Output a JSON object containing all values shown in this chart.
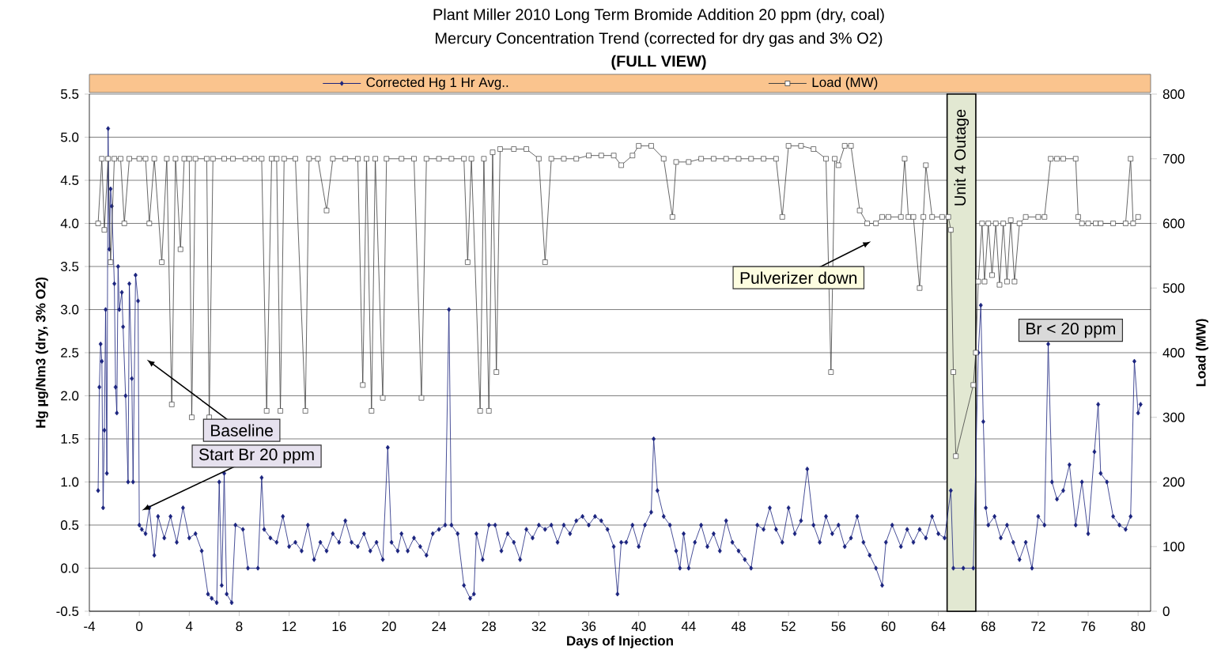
{
  "chart_data": {
    "type": "line",
    "title": "Plant Miller 2010 Long Term Bromide Addition 20 ppm (dry, coal)",
    "subtitle": "Mercury Concentration Trend (corrected for dry gas and 3% O2)",
    "xlabel": "Days of Injection",
    "ylabel": "Hg µg/Nm3 (dry, 3% O2)",
    "y2label": "Load (MW)",
    "annotations": [
      "(FULL VIEW)",
      "Baseline",
      "Start Br 20 ppm",
      "Pulverizer  down",
      "Br < 20 ppm"
    ],
    "series": [
      {
        "name": "Corrected Hg 1 Hr Avg..",
        "color": "#1a237e",
        "marker": "diamond",
        "x": [
          -3.3,
          -3.2,
          -3.1,
          -3.0,
          -2.9,
          -2.8,
          -2.7,
          -2.6,
          -2.5,
          -2.4,
          -2.3,
          -2.2,
          -2.0,
          -1.9,
          -1.8,
          -1.7,
          -1.6,
          -1.4,
          -1.3,
          -1.1,
          -0.9,
          -0.8,
          -0.6,
          -0.5,
          -0.3,
          -0.1,
          0.0,
          0.2,
          0.5,
          0.8,
          1.2,
          1.5,
          2,
          2.5,
          3,
          3.5,
          4,
          4.5,
          5,
          5.5,
          5.8,
          6.2,
          6.4,
          6.6,
          6.8,
          7.0,
          7.4,
          7.7,
          8.3,
          8.7,
          9.5,
          9.8,
          10,
          10.5,
          11,
          11.5,
          12,
          12.5,
          13,
          13.5,
          14,
          14.5,
          15,
          15.5,
          16,
          16.5,
          17,
          17.5,
          18,
          18.5,
          19,
          19.5,
          19.9,
          20.2,
          20.7,
          21,
          21.5,
          22,
          22.5,
          23,
          23.5,
          24,
          24.5,
          24.8,
          25,
          25.5,
          26,
          26.5,
          26.8,
          27,
          27.5,
          28,
          28.5,
          29,
          29.5,
          30,
          30.5,
          31,
          31.5,
          32,
          32.5,
          33,
          33.5,
          34,
          34.5,
          35,
          35.5,
          36,
          36.5,
          37,
          37.5,
          38,
          38.3,
          38.6,
          39,
          39.5,
          40,
          40.5,
          41,
          41.2,
          41.5,
          42,
          42.5,
          43,
          43.3,
          43.6,
          44,
          44.5,
          45,
          45.5,
          46,
          46.5,
          47,
          47.5,
          48,
          48.5,
          49,
          49.5,
          50,
          50.5,
          51,
          51.5,
          52,
          52.5,
          53,
          53.5,
          54,
          54.5,
          55,
          55.5,
          56,
          56.5,
          57,
          57.5,
          58,
          58.5,
          59,
          59.5,
          59.8,
          60.3,
          61,
          61.5,
          62,
          62.5,
          63,
          63.5,
          64,
          64.5,
          65,
          65.2,
          66,
          66.8,
          67.2,
          67.4,
          67.6,
          67.8,
          68,
          68.5,
          69,
          69.5,
          70,
          70.5,
          71,
          71.5,
          72,
          72.5,
          72.8,
          73.1,
          73.5,
          74,
          74.5,
          75,
          75.5,
          76,
          76.5,
          76.8,
          77,
          77.5,
          78,
          78.5,
          79,
          79.4,
          79.7,
          80,
          80.2
        ],
        "values": [
          0.9,
          2.1,
          2.6,
          2.4,
          0.7,
          1.6,
          3.0,
          1.1,
          5.1,
          3.7,
          4.4,
          4.2,
          3.3,
          2.1,
          1.8,
          3.5,
          3.0,
          3.2,
          2.8,
          2.0,
          1.0,
          3.3,
          2.2,
          1.0,
          3.4,
          3.1,
          0.5,
          0.45,
          0.4,
          0.7,
          0.15,
          0.6,
          0.35,
          0.6,
          0.3,
          0.7,
          0.35,
          0.4,
          0.2,
          -0.3,
          -0.35,
          -0.4,
          1.0,
          -0.2,
          1.1,
          -0.3,
          -0.4,
          0.5,
          0.45,
          0.0,
          0.0,
          1.05,
          0.45,
          0.35,
          0.3,
          0.6,
          0.25,
          0.3,
          0.2,
          0.5,
          0.1,
          0.3,
          0.2,
          0.4,
          0.3,
          0.55,
          0.3,
          0.25,
          0.4,
          0.2,
          0.3,
          0.1,
          1.4,
          0.3,
          0.2,
          0.4,
          0.2,
          0.35,
          0.25,
          0.15,
          0.4,
          0.45,
          0.5,
          3.0,
          0.5,
          0.4,
          -0.2,
          -0.35,
          -0.3,
          0.4,
          0.1,
          0.5,
          0.5,
          0.2,
          0.4,
          0.3,
          0.1,
          0.45,
          0.35,
          0.5,
          0.45,
          0.5,
          0.3,
          0.5,
          0.4,
          0.55,
          0.6,
          0.5,
          0.6,
          0.55,
          0.45,
          0.25,
          -0.3,
          0.3,
          0.3,
          0.5,
          0.25,
          0.5,
          0.65,
          1.5,
          0.9,
          0.6,
          0.5,
          0.2,
          0.0,
          0.4,
          0.0,
          0.3,
          0.5,
          0.25,
          0.4,
          0.2,
          0.55,
          0.3,
          0.2,
          0.1,
          0.0,
          0.5,
          0.45,
          0.7,
          0.45,
          0.3,
          0.7,
          0.4,
          0.55,
          1.15,
          0.5,
          0.3,
          0.6,
          0.4,
          0.5,
          0.25,
          0.35,
          0.6,
          0.3,
          0.15,
          0.0,
          -0.2,
          0.3,
          0.5,
          0.25,
          0.45,
          0.3,
          0.45,
          0.35,
          0.6,
          0.4,
          0.35,
          0.9,
          0.0,
          0.0,
          0.0,
          2.5,
          3.05,
          1.7,
          0.7,
          0.5,
          0.6,
          0.35,
          0.5,
          0.3,
          0.1,
          0.3,
          0.0,
          0.6,
          0.5,
          2.6,
          1.0,
          0.8,
          0.9,
          1.2,
          0.5,
          1.0,
          0.4,
          1.35,
          1.9,
          1.1,
          1.0,
          0.6,
          0.5,
          0.45,
          0.6,
          2.4,
          1.8,
          1.9
        ]
      },
      {
        "name": "Load (MW)",
        "color": "#404040",
        "marker": "square",
        "axis": "y2",
        "x": [
          -3.3,
          -3.0,
          -2.8,
          -2.5,
          -2.3,
          -2.0,
          -1.5,
          -1.2,
          -0.8,
          0,
          0.5,
          0.8,
          1.2,
          1.8,
          2.2,
          2.6,
          2.9,
          3.3,
          3.6,
          4.0,
          4.2,
          4.5,
          5.4,
          5.6,
          5.9,
          6.8,
          7.5,
          8.5,
          9.2,
          9.8,
          10.2,
          10.6,
          11.0,
          11.3,
          11.6,
          12.5,
          13.3,
          13.6,
          14.3,
          15.0,
          15.5,
          16.5,
          17.5,
          17.9,
          18.2,
          18.6,
          18.9,
          19.5,
          19.8,
          21.0,
          22.0,
          22.6,
          23,
          24,
          25,
          26,
          26.3,
          26.6,
          27.3,
          27.6,
          28,
          28.3,
          28.6,
          28.9,
          30,
          31,
          32,
          32.5,
          33,
          34,
          35,
          36,
          37,
          38,
          38.6,
          39.5,
          40,
          41,
          42,
          42.7,
          43,
          44,
          45,
          46,
          47,
          48,
          49,
          50,
          51,
          51.5,
          52,
          53,
          54,
          55,
          55.4,
          55.7,
          56,
          56.5,
          57,
          57.7,
          58.3,
          59,
          59.5,
          60,
          61,
          61.3,
          61.6,
          62,
          62.5,
          62.8,
          63,
          63.5,
          64.3,
          64.8,
          65.0,
          65.2,
          65.4,
          66.8,
          67.0,
          67.2,
          67.5,
          67.7,
          68,
          68.3,
          68.6,
          68.9,
          69.2,
          69.5,
          69.8,
          70.1,
          70.5,
          71,
          72,
          72.5,
          73,
          73.5,
          74,
          75,
          75.2,
          75.5,
          76,
          76.6,
          77,
          78,
          79,
          79.4,
          79.6,
          80
        ],
        "values": [
          600,
          700,
          590,
          700,
          540,
          700,
          700,
          600,
          700,
          700,
          700,
          600,
          700,
          540,
          700,
          320,
          700,
          560,
          700,
          700,
          300,
          700,
          700,
          300,
          700,
          700,
          700,
          700,
          700,
          700,
          310,
          700,
          700,
          310,
          700,
          700,
          310,
          700,
          700,
          620,
          700,
          700,
          700,
          350,
          700,
          310,
          700,
          330,
          700,
          700,
          700,
          330,
          700,
          700,
          700,
          700,
          540,
          700,
          310,
          700,
          310,
          710,
          370,
          715,
          715,
          715,
          700,
          540,
          700,
          700,
          700,
          705,
          705,
          705,
          690,
          705,
          720,
          720,
          700,
          610,
          695,
          695,
          700,
          700,
          700,
          700,
          700,
          700,
          700,
          610,
          720,
          720,
          715,
          700,
          370,
          700,
          690,
          720,
          720,
          620,
          600,
          600,
          610,
          610,
          610,
          700,
          610,
          610,
          500,
          610,
          690,
          610,
          610,
          610,
          590,
          370,
          240,
          350,
          400,
          510,
          600,
          510,
          600,
          520,
          600,
          505,
          600,
          510,
          605,
          510,
          600,
          610,
          610,
          610,
          700,
          700,
          700,
          700,
          610,
          600,
          600,
          600,
          600,
          600,
          600,
          700,
          600,
          610
        ]
      }
    ],
    "bands": [
      {
        "axis": "x",
        "from": 64.7,
        "to": 67.0,
        "label": "Unit 4 Outage",
        "color": "#e2e8d2"
      }
    ],
    "xlim": [
      -4,
      81
    ],
    "xticks": [
      -4,
      0,
      4,
      8,
      12,
      16,
      20,
      24,
      28,
      32,
      36,
      40,
      44,
      48,
      52,
      56,
      60,
      64,
      68,
      72,
      76,
      80
    ],
    "ylim": [
      -0.5,
      5.5
    ],
    "yticks": [
      -0.5,
      {
        "value": 0,
        "label": "0.0"
      },
      0.5,
      {
        "value": 1,
        "label": "1.0"
      },
      1.5,
      {
        "value": 2,
        "label": "2.0"
      },
      2.5,
      {
        "value": 3,
        "label": "3.0"
      },
      3.5,
      {
        "value": 4,
        "label": "4.0"
      },
      4.5,
      {
        "value": 5,
        "label": "5.0"
      },
      5.5
    ],
    "y2lim": [
      0,
      800
    ],
    "y2ticks": [
      0,
      100,
      200,
      300,
      400,
      500,
      600,
      700,
      800
    ],
    "grid": "y",
    "legend": "top"
  }
}
